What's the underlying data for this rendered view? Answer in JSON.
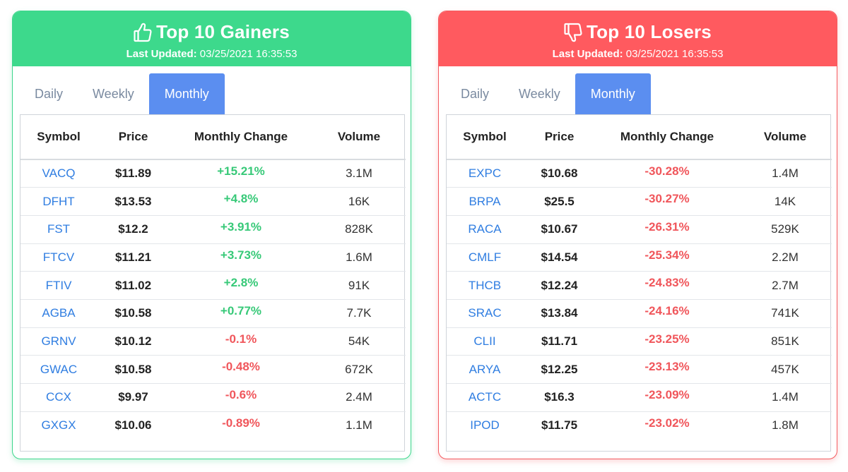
{
  "colors": {
    "gainers_accent": "#3dd98c",
    "losers_accent": "#ff5a5f",
    "active_tab": "#5b8ef0",
    "symbol_link": "#2f7de1",
    "positive": "#37c978",
    "negative": "#f0565b"
  },
  "gainers": {
    "title": "Top 10 Gainers",
    "icon": "thumbs-up-icon",
    "updated_label": "Last Updated:",
    "updated_value": " 03/25/2021 16:35:53",
    "tabs": [
      "Daily",
      "Weekly",
      "Monthly"
    ],
    "active_tab": "Monthly",
    "columns": [
      "Symbol",
      "Price",
      "Monthly Change",
      "Volume"
    ],
    "rows": [
      {
        "symbol": "VACQ",
        "price": "$11.89",
        "change": "+15.21%",
        "volume": "3.1M",
        "dir": "pos"
      },
      {
        "symbol": "DFHT",
        "price": "$13.53",
        "change": "+4.8%",
        "volume": "16K",
        "dir": "pos"
      },
      {
        "symbol": "FST",
        "price": "$12.2",
        "change": "+3.91%",
        "volume": "828K",
        "dir": "pos"
      },
      {
        "symbol": "FTCV",
        "price": "$11.21",
        "change": "+3.73%",
        "volume": "1.6M",
        "dir": "pos"
      },
      {
        "symbol": "FTIV",
        "price": "$11.02",
        "change": "+2.8%",
        "volume": "91K",
        "dir": "pos"
      },
      {
        "symbol": "AGBA",
        "price": "$10.58",
        "change": "+0.77%",
        "volume": "7.7K",
        "dir": "pos"
      },
      {
        "symbol": "GRNV",
        "price": "$10.12",
        "change": "-0.1%",
        "volume": "54K",
        "dir": "neg"
      },
      {
        "symbol": "GWAC",
        "price": "$10.58",
        "change": "-0.48%",
        "volume": "672K",
        "dir": "neg"
      },
      {
        "symbol": "CCX",
        "price": "$9.97",
        "change": "-0.6%",
        "volume": "2.4M",
        "dir": "neg"
      },
      {
        "symbol": "GXGX",
        "price": "$10.06",
        "change": "-0.89%",
        "volume": "1.1M",
        "dir": "neg"
      }
    ]
  },
  "losers": {
    "title": "Top 10 Losers",
    "icon": "thumbs-down-icon",
    "updated_label": "Last Updated:",
    "updated_value": " 03/25/2021 16:35:53",
    "tabs": [
      "Daily",
      "Weekly",
      "Monthly"
    ],
    "active_tab": "Monthly",
    "columns": [
      "Symbol",
      "Price",
      "Monthly Change",
      "Volume"
    ],
    "rows": [
      {
        "symbol": "EXPC",
        "price": "$10.68",
        "change": "-30.28%",
        "volume": "1.4M",
        "dir": "neg"
      },
      {
        "symbol": "BRPA",
        "price": "$25.5",
        "change": "-30.27%",
        "volume": "14K",
        "dir": "neg"
      },
      {
        "symbol": "RACA",
        "price": "$10.67",
        "change": "-26.31%",
        "volume": "529K",
        "dir": "neg"
      },
      {
        "symbol": "CMLF",
        "price": "$14.54",
        "change": "-25.34%",
        "volume": "2.2M",
        "dir": "neg"
      },
      {
        "symbol": "THCB",
        "price": "$12.24",
        "change": "-24.83%",
        "volume": "2.7M",
        "dir": "neg"
      },
      {
        "symbol": "SRAC",
        "price": "$13.84",
        "change": "-24.16%",
        "volume": "741K",
        "dir": "neg"
      },
      {
        "symbol": "CLII",
        "price": "$11.71",
        "change": "-23.25%",
        "volume": "851K",
        "dir": "neg"
      },
      {
        "symbol": "ARYA",
        "price": "$12.25",
        "change": "-23.13%",
        "volume": "457K",
        "dir": "neg"
      },
      {
        "symbol": "ACTC",
        "price": "$16.3",
        "change": "-23.09%",
        "volume": "1.4M",
        "dir": "neg"
      },
      {
        "symbol": "IPOD",
        "price": "$11.75",
        "change": "-23.02%",
        "volume": "1.8M",
        "dir": "neg"
      }
    ]
  }
}
